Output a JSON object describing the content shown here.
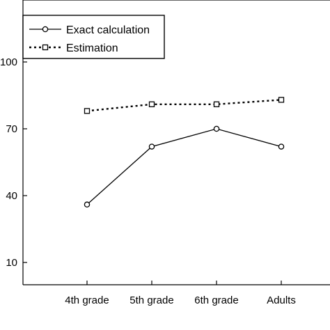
{
  "chart_data": {
    "type": "line",
    "title": "",
    "xlabel": "",
    "ylabel": "",
    "categories": [
      "4th grade",
      "5th grade",
      "6th grade",
      "Adults"
    ],
    "y_ticks": [
      "10",
      "40",
      "70",
      "100"
    ],
    "ylim": [
      0,
      120
    ],
    "grid": false,
    "legend_position": "top-left",
    "series": [
      {
        "name": "Exact calculation",
        "values": [
          36,
          62,
          70,
          62
        ],
        "marker": "circle",
        "line_style": "solid",
        "color": "#000000"
      },
      {
        "name": "Estimation",
        "values": [
          78,
          81,
          81,
          83
        ],
        "marker": "square",
        "line_style": "dotted",
        "color": "#000000"
      }
    ]
  }
}
